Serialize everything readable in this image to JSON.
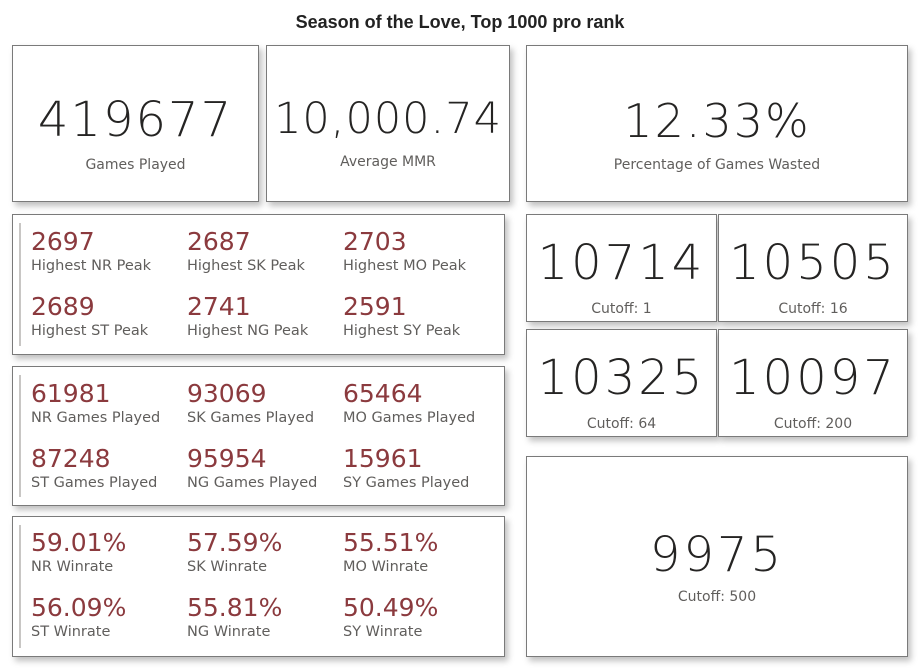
{
  "title": "Season of the Love, Top 1000 pro rank",
  "kpis": {
    "games_played": {
      "value": "419677",
      "label": "Games Played"
    },
    "average_mmr": {
      "value": "10,000.74",
      "label": "Average MMR"
    },
    "pct_wasted": {
      "value": "12.33%",
      "label": "Percentage of Games Wasted"
    }
  },
  "cutoffs": [
    {
      "value": "10714",
      "label": "Cutoff: 1"
    },
    {
      "value": "10505",
      "label": "Cutoff: 16"
    },
    {
      "value": "10325",
      "label": "Cutoff: 64"
    },
    {
      "value": "10097",
      "label": "Cutoff: 200"
    },
    {
      "value": "9975",
      "label": "Cutoff: 500"
    }
  ],
  "peaks": [
    {
      "value": "2697",
      "label": "Highest NR Peak"
    },
    {
      "value": "2687",
      "label": "Highest SK Peak"
    },
    {
      "value": "2703",
      "label": "Highest MO Peak"
    },
    {
      "value": "2689",
      "label": "Highest ST Peak"
    },
    {
      "value": "2741",
      "label": "Highest NG Peak"
    },
    {
      "value": "2591",
      "label": "Highest SY Peak"
    }
  ],
  "games": [
    {
      "value": "61981",
      "label": "NR Games Played"
    },
    {
      "value": "93069",
      "label": "SK Games Played"
    },
    {
      "value": "65464",
      "label": "MO Games Played"
    },
    {
      "value": "87248",
      "label": "ST Games Played"
    },
    {
      "value": "95954",
      "label": "NG Games Played"
    },
    {
      "value": "15961",
      "label": "SY Games Played"
    }
  ],
  "winrates": [
    {
      "value": "59.01%",
      "label": "NR Winrate"
    },
    {
      "value": "57.59%",
      "label": "SK Winrate"
    },
    {
      "value": "55.51%",
      "label": "MO Winrate"
    },
    {
      "value": "56.09%",
      "label": "ST Winrate"
    },
    {
      "value": "55.81%",
      "label": "NG Winrate"
    },
    {
      "value": "50.49%",
      "label": "SY Winrate"
    }
  ],
  "chart_data": {
    "type": "table",
    "title": "Season of the Love, Top 1000 pro rank",
    "kpis": [
      {
        "name": "Games Played",
        "value": 419677
      },
      {
        "name": "Average MMR",
        "value": 10000.74
      },
      {
        "name": "Percentage of Games Wasted",
        "value": 12.33
      }
    ],
    "cutoffs": {
      "categories": [
        "Cutoff: 1",
        "Cutoff: 16",
        "Cutoff: 64",
        "Cutoff: 200",
        "Cutoff: 500"
      ],
      "values": [
        10714,
        10505,
        10325,
        10097,
        9975
      ]
    },
    "factions": [
      "NR",
      "SK",
      "MO",
      "ST",
      "NG",
      "SY"
    ],
    "series": [
      {
        "name": "Highest Peak",
        "values": [
          2697,
          2687,
          2703,
          2689,
          2741,
          2591
        ]
      },
      {
        "name": "Games Played",
        "values": [
          61981,
          93069,
          65464,
          87248,
          95954,
          15961
        ]
      },
      {
        "name": "Winrate",
        "values": [
          59.01,
          57.59,
          55.51,
          56.09,
          55.81,
          50.49
        ]
      }
    ]
  }
}
